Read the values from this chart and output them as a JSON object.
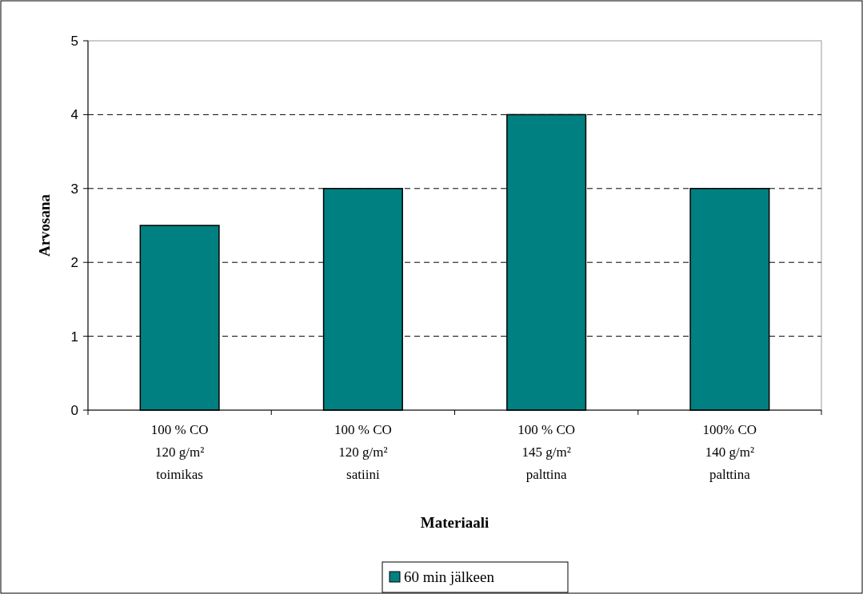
{
  "chart_data": {
    "type": "bar",
    "xlabel": "Materiaali",
    "ylabel": "Arvosana",
    "categories": [
      "100 % CO\n120 g/m²\ntoimikas",
      "100 % CO\n120 g/m²\nsatiini",
      "100 % CO\n145 g/m²\npalttina",
      "100%  CO\n140 g/m²\npalttina"
    ],
    "series": [
      {
        "name": "60 min jälkeen",
        "color": "#008080",
        "values": [
          2.5,
          3,
          4,
          3
        ]
      }
    ],
    "ylim": [
      0,
      5
    ],
    "yticks": [
      0,
      1,
      2,
      3,
      4,
      5
    ],
    "grid": "y",
    "legend": "bottom"
  }
}
